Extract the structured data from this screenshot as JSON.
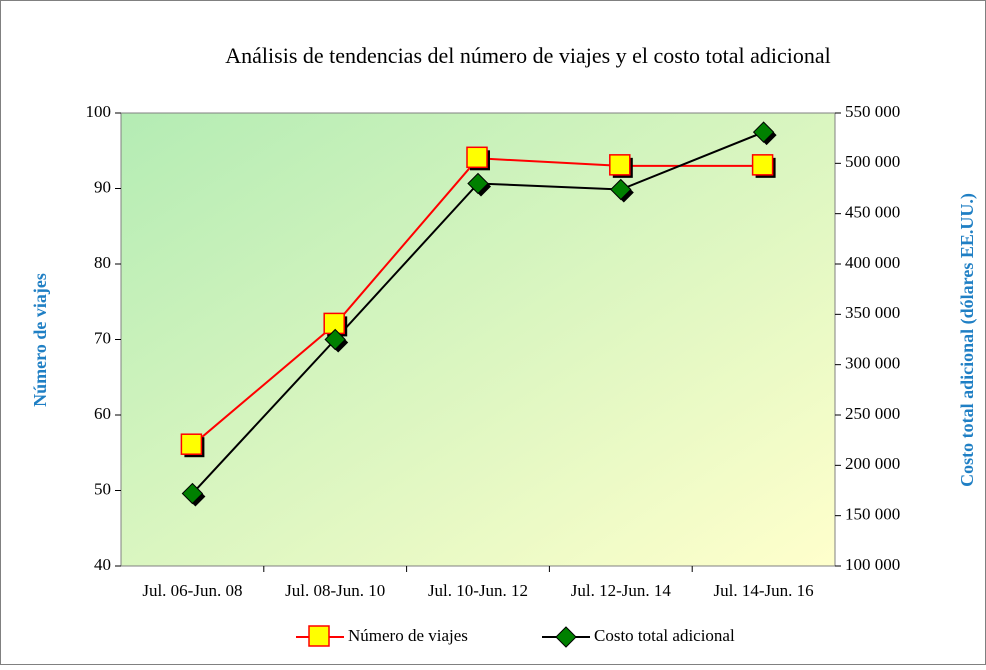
{
  "chart_data": {
    "type": "line",
    "title": "Análisis de tendencias del número de viajes y el costo total adicional",
    "categories": [
      "Jul. 06-Jun. 08",
      "Jul. 08-Jun. 10",
      "Jul. 10-Jun. 12",
      "Jul. 12-Jun. 14",
      "Jul. 14-Jun. 16"
    ],
    "y_label": "Número de viajes",
    "y2_label": "Costo total adicional (dólares EE.UU.)",
    "ylim": [
      40,
      100
    ],
    "yticks": [
      40,
      50,
      60,
      70,
      80,
      90,
      100
    ],
    "y2lim": [
      100000,
      550000
    ],
    "y2ticks": [
      {
        "value": 100000,
        "label": "100 000"
      },
      {
        "value": 150000,
        "label": "150 000"
      },
      {
        "value": 200000,
        "label": "200 000"
      },
      {
        "value": 250000,
        "label": "250 000"
      },
      {
        "value": 300000,
        "label": "300 000"
      },
      {
        "value": 350000,
        "label": "350 000"
      },
      {
        "value": 400000,
        "label": "400 000"
      },
      {
        "value": 450000,
        "label": "450 000"
      },
      {
        "value": 500000,
        "label": "500 000"
      },
      {
        "value": 550000,
        "label": "550 000"
      }
    ],
    "legend": "bottom",
    "series": [
      {
        "name": "Número de viajes",
        "color": "#ff0000",
        "marker_color": "#ffff00",
        "marker": "square",
        "values": [
          56,
          72,
          94,
          93,
          93
        ]
      },
      {
        "name": "Costo total adicional",
        "color": "#000000",
        "marker_color": "#008000",
        "marker": "diamond",
        "axis": "y2",
        "values": [
          172000,
          325000,
          480000,
          474000,
          531000
        ]
      }
    ]
  }
}
